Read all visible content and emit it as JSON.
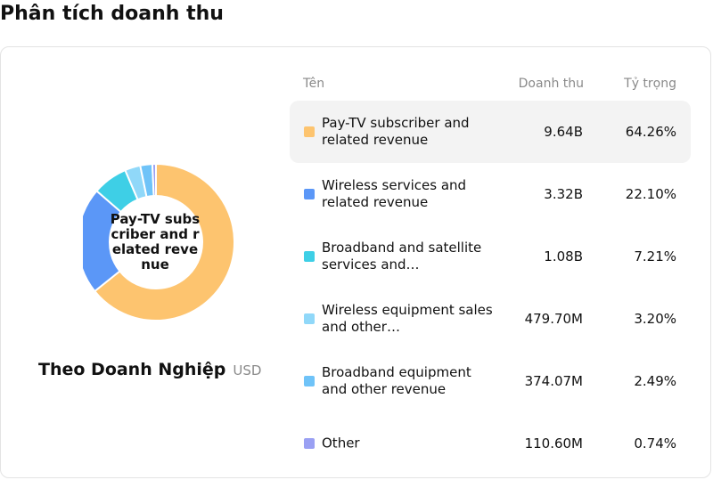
{
  "page": {
    "title": "Phân tích doanh thu"
  },
  "breakdown": {
    "title": "Theo Doanh Nghiệp",
    "unit": "USD"
  },
  "table": {
    "headers": {
      "name": "Tên",
      "revenue": "Doanh thu",
      "share": "Tỷ trọng"
    },
    "highlighted_index": 0
  },
  "chart_data": {
    "type": "pie",
    "donut": true,
    "center_label": "Pay-TV subscriber and related revenue",
    "categories": [
      "Pay-TV subscriber and related revenue",
      "Wireless services and related revenue",
      "Broadband and satellite services and…",
      "Wireless equipment sales and other…",
      "Broadband equipment and other revenue",
      "Other"
    ],
    "revenue_labels": [
      "9.64B",
      "3.32B",
      "1.08B",
      "479.70M",
      "374.07M",
      "110.60M"
    ],
    "share_labels": [
      "64.26%",
      "22.10%",
      "7.21%",
      "3.20%",
      "2.49%",
      "0.74%"
    ],
    "values": [
      64.26,
      22.1,
      7.21,
      3.2,
      2.49,
      0.74
    ],
    "colors": [
      "#fdc46f",
      "#5b97f7",
      "#3ecfe6",
      "#90d8f9",
      "#6fc3f8",
      "#9aa0f3"
    ]
  }
}
